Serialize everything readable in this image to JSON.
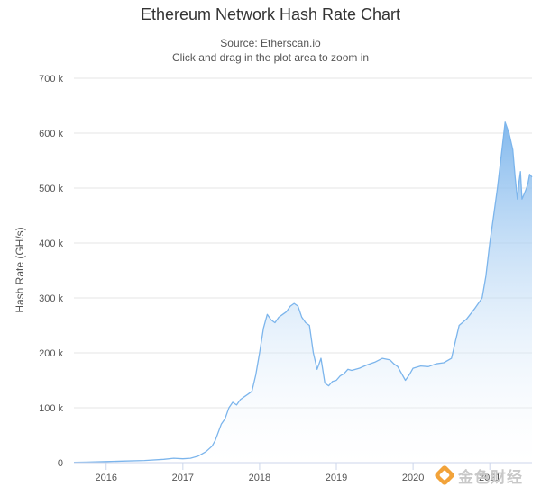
{
  "header": {
    "title": "Ethereum Network Hash Rate Chart",
    "source": "Source: Etherscan.io",
    "hint": "Click and drag in the plot area to zoom in"
  },
  "watermark": {
    "text": "金色财经",
    "icon": "jinse-logo-icon"
  },
  "chart_data": {
    "type": "area",
    "title": "Ethereum Network Hash Rate Chart",
    "subtitle": "Source: Etherscan.io",
    "xlabel": "",
    "ylabel": "Hash Rate (GH/s)",
    "xlim": [
      2015.58,
      2021.55
    ],
    "ylim": [
      0,
      700000
    ],
    "yticks": [
      0,
      100000,
      200000,
      300000,
      400000,
      500000,
      600000,
      700000
    ],
    "ytick_labels": [
      "0",
      "100 k",
      "200 k",
      "300 k",
      "400 k",
      "500 k",
      "600 k",
      "700 k"
    ],
    "xticks": [
      2016,
      2017,
      2018,
      2019,
      2020,
      2021
    ],
    "xtick_labels": [
      "2016",
      "2017",
      "2018",
      "2019",
      "2020",
      "2021"
    ],
    "grid": true,
    "legend": "none",
    "colors": {
      "line": "#7cb5ec",
      "fill_top": "#7cb5ec",
      "fill_bottom": "#ffffff",
      "grid": "#e6e6e6"
    },
    "series": [
      {
        "name": "",
        "x": [
          2015.58,
          2015.75,
          2016.0,
          2016.25,
          2016.5,
          2016.75,
          2016.88,
          2017.0,
          2017.1,
          2017.2,
          2017.3,
          2017.38,
          2017.42,
          2017.5,
          2017.55,
          2017.6,
          2017.65,
          2017.7,
          2017.75,
          2017.8,
          2017.85,
          2017.9,
          2017.95,
          2018.0,
          2018.05,
          2018.1,
          2018.15,
          2018.2,
          2018.25,
          2018.3,
          2018.35,
          2018.4,
          2018.45,
          2018.5,
          2018.55,
          2018.6,
          2018.65,
          2018.7,
          2018.75,
          2018.8,
          2018.85,
          2018.9,
          2018.95,
          2019.0,
          2019.05,
          2019.1,
          2019.15,
          2019.2,
          2019.3,
          2019.4,
          2019.5,
          2019.6,
          2019.7,
          2019.75,
          2019.8,
          2019.9,
          2019.95,
          2020.0,
          2020.1,
          2020.2,
          2020.3,
          2020.4,
          2020.5,
          2020.55,
          2020.6,
          2020.7,
          2020.8,
          2020.9,
          2020.95,
          2021.0,
          2021.05,
          2021.1,
          2021.15,
          2021.2,
          2021.25,
          2021.3,
          2021.33,
          2021.36,
          2021.38,
          2021.4,
          2021.42,
          2021.45,
          2021.48,
          2021.5,
          2021.52,
          2021.55
        ],
        "values": [
          500,
          1000,
          2000,
          3000,
          4000,
          6000,
          8000,
          7000,
          8000,
          12000,
          20000,
          30000,
          40000,
          70000,
          80000,
          100000,
          110000,
          105000,
          115000,
          120000,
          125000,
          130000,
          160000,
          200000,
          245000,
          270000,
          260000,
          255000,
          265000,
          270000,
          275000,
          285000,
          290000,
          285000,
          265000,
          255000,
          250000,
          200000,
          170000,
          190000,
          145000,
          140000,
          148000,
          150000,
          158000,
          162000,
          170000,
          168000,
          172000,
          178000,
          183000,
          190000,
          187000,
          180000,
          175000,
          150000,
          160000,
          172000,
          176000,
          175000,
          180000,
          182000,
          190000,
          220000,
          250000,
          262000,
          280000,
          300000,
          340000,
          400000,
          450000,
          500000,
          560000,
          620000,
          600000,
          570000,
          520000,
          480000,
          510000,
          530000,
          480000,
          490000,
          500000,
          510000,
          525000,
          520000
        ]
      }
    ]
  }
}
